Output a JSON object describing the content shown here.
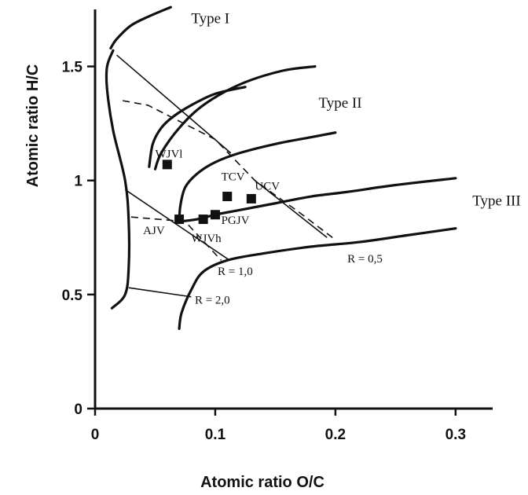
{
  "chart_data": {
    "type": "line",
    "title": "",
    "xlabel": "Atomic ratio O/C",
    "ylabel": "Atomic  ratio H/C",
    "xlim": [
      0,
      0.34
    ],
    "ylim": [
      0,
      1.75
    ],
    "x_ticks": [
      {
        "value": 0,
        "label": "0"
      },
      {
        "value": 0.1,
        "label": "0.1"
      },
      {
        "value": 0.2,
        "label": "0.2"
      },
      {
        "value": 0.3,
        "label": "0.3"
      }
    ],
    "y_ticks": [
      {
        "value": 0,
        "label": "0"
      },
      {
        "value": 0.5,
        "label": "0.5"
      },
      {
        "value": 1.0,
        "label": "1"
      },
      {
        "value": 1.5,
        "label": "1.5"
      }
    ],
    "grid": false,
    "legend": "none",
    "type_curves": [
      {
        "label": "Type I",
        "label_at": [
          0.08,
          1.69
        ],
        "points": [
          [
            0.013,
            1.58
          ],
          [
            0.018,
            1.62
          ],
          [
            0.03,
            1.68
          ],
          [
            0.045,
            1.72
          ],
          [
            0.063,
            1.76
          ]
        ]
      },
      {
        "label": "",
        "label_at": null,
        "points": [
          [
            0.045,
            1.06
          ],
          [
            0.048,
            1.16
          ],
          [
            0.055,
            1.23
          ],
          [
            0.065,
            1.28
          ],
          [
            0.08,
            1.33
          ],
          [
            0.1,
            1.38
          ],
          [
            0.125,
            1.41
          ]
        ]
      },
      {
        "label": "Type II",
        "label_at": [
          0.186,
          1.32
        ],
        "points": [
          [
            0.05,
            1.05
          ],
          [
            0.055,
            1.12
          ],
          [
            0.07,
            1.23
          ],
          [
            0.09,
            1.33
          ],
          [
            0.12,
            1.42
          ],
          [
            0.155,
            1.48
          ],
          [
            0.183,
            1.5
          ]
        ]
      },
      {
        "label": "",
        "label_at": null,
        "points": [
          [
            0.07,
            0.82
          ],
          [
            0.071,
            0.89
          ],
          [
            0.075,
            0.97
          ],
          [
            0.085,
            1.03
          ],
          [
            0.1,
            1.08
          ],
          [
            0.12,
            1.12
          ],
          [
            0.15,
            1.16
          ],
          [
            0.18,
            1.19
          ],
          [
            0.2,
            1.21
          ]
        ]
      },
      {
        "label": "Type III",
        "label_at": [
          0.314,
          0.89
        ],
        "points": [
          [
            0.07,
            0.82
          ],
          [
            0.085,
            0.83
          ],
          [
            0.1,
            0.85
          ],
          [
            0.12,
            0.87
          ],
          [
            0.15,
            0.9
          ],
          [
            0.18,
            0.93
          ],
          [
            0.21,
            0.95
          ],
          [
            0.25,
            0.98
          ],
          [
            0.3,
            1.01
          ]
        ]
      },
      {
        "label": "",
        "label_at": null,
        "points": [
          [
            0.015,
            1.57
          ],
          [
            0.01,
            1.5
          ],
          [
            0.01,
            1.4
          ],
          [
            0.015,
            1.22
          ],
          [
            0.025,
            1.0
          ],
          [
            0.028,
            0.82
          ],
          [
            0.028,
            0.62
          ],
          [
            0.025,
            0.5
          ],
          [
            0.014,
            0.44
          ]
        ]
      },
      {
        "label": "",
        "label_at": null,
        "points": [
          [
            0.07,
            0.35
          ],
          [
            0.072,
            0.42
          ],
          [
            0.08,
            0.52
          ],
          [
            0.09,
            0.6
          ],
          [
            0.11,
            0.65
          ],
          [
            0.14,
            0.68
          ],
          [
            0.18,
            0.71
          ],
          [
            0.22,
            0.73
          ],
          [
            0.26,
            0.76
          ],
          [
            0.3,
            0.79
          ]
        ]
      }
    ],
    "iso_lines": [
      {
        "label": "R = 0,5",
        "label_at": [
          0.21,
          0.64
        ],
        "style": "dashed",
        "points": [
          [
            0.023,
            1.35
          ],
          [
            0.044,
            1.33
          ],
          [
            0.1,
            1.18
          ],
          [
            0.133,
            1.0
          ],
          [
            0.17,
            0.86
          ],
          [
            0.2,
            0.74
          ]
        ]
      },
      {
        "label": "",
        "label_at": null,
        "style": "solid",
        "points": [
          [
            0.018,
            1.55
          ],
          [
            0.113,
            1.12
          ]
        ]
      },
      {
        "label": "",
        "label_at": null,
        "style": "solid",
        "points": [
          [
            0.133,
            1.0
          ],
          [
            0.193,
            0.75
          ]
        ]
      },
      {
        "label": "R = 1,0",
        "label_at": [
          0.102,
          0.585
        ],
        "style": "solid",
        "points": [
          [
            0.025,
            0.96
          ],
          [
            0.112,
            0.65
          ]
        ]
      },
      {
        "label": "",
        "label_at": null,
        "style": "dashed",
        "points": [
          [
            0.03,
            0.84
          ],
          [
            0.075,
            0.82
          ],
          [
            0.105,
            0.65
          ]
        ]
      },
      {
        "label": "R = 2,0",
        "label_at": [
          0.083,
          0.46
        ],
        "style": "solid",
        "points": [
          [
            0.028,
            0.53
          ],
          [
            0.08,
            0.49
          ]
        ]
      }
    ],
    "samples": [
      {
        "name": "WJVl",
        "x": 0.06,
        "y": 1.07,
        "label_at": [
          0.05,
          1.1
        ]
      },
      {
        "name": "TCV",
        "x": 0.11,
        "y": 0.93,
        "label_at": [
          0.105,
          1.0
        ]
      },
      {
        "name": "UCV",
        "x": 0.13,
        "y": 0.92,
        "label_at": [
          0.133,
          0.96
        ]
      },
      {
        "name": "AJV",
        "x": 0.07,
        "y": 0.83,
        "label_at": [
          0.04,
          0.765
        ]
      },
      {
        "name": "WJVh",
        "x": 0.09,
        "y": 0.83,
        "label_at": [
          0.08,
          0.73
        ]
      },
      {
        "name": "PGJV",
        "x": 0.1,
        "y": 0.85,
        "label_at": [
          0.105,
          0.81
        ]
      }
    ]
  }
}
